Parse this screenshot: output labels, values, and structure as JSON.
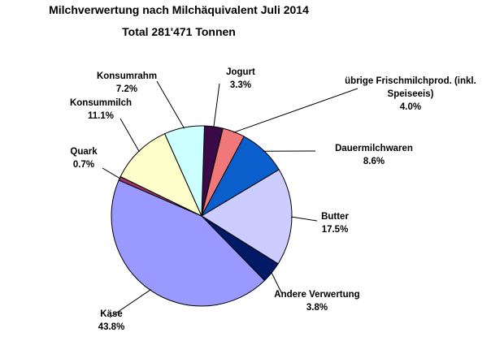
{
  "chart_data": {
    "type": "pie",
    "title": "Milchverwertung nach Milchäquivalent Juli 2014",
    "subtitle": "Total 281'471 Tonnen",
    "unit": "%",
    "slices": [
      {
        "name": "Jogurt",
        "value_label": "3.3%",
        "value": 3.3,
        "color": "#3a0a48"
      },
      {
        "name": "übrige Frischmilchprod. (inkl. Speiseeis)",
        "name_lines": [
          "übrige Frischmilchprod. (inkl.",
          "Speiseeis)"
        ],
        "value_label": "4.0%",
        "value": 4.0,
        "color": "#f07878"
      },
      {
        "name": "Dauermilchwaren",
        "value_label": "8.6%",
        "value": 8.6,
        "color": "#0a5fcc"
      },
      {
        "name": "Butter",
        "value_label": "17.5%",
        "value": 17.5,
        "color": "#ccccff"
      },
      {
        "name": "Andere Verwertung",
        "value_label": "3.8%",
        "value": 3.8,
        "color": "#001a66"
      },
      {
        "name": "Käse",
        "value_label": "43.8%",
        "value": 43.8,
        "color": "#9999ff"
      },
      {
        "name": "Quark",
        "value_label": "0.7%",
        "value": 0.7,
        "color": "#993366"
      },
      {
        "name": "Konsummilch",
        "value_label": "11.1%",
        "value": 11.1,
        "color": "#ffffcc"
      },
      {
        "name": "Konsumrahm",
        "value_label": "7.2%",
        "value": 7.2,
        "color": "#ccffff"
      }
    ]
  }
}
